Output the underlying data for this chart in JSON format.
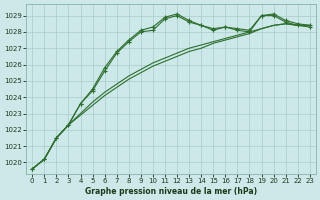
{
  "title": "Graphe pression niveau de la mer (hPa)",
  "bg_color": "#cce8e8",
  "grid_color": "#aacccc",
  "line_color": "#2d6e2d",
  "xlim": [
    -0.5,
    23.5
  ],
  "ylim": [
    1019.3,
    1029.7
  ],
  "yticks": [
    1020,
    1021,
    1022,
    1023,
    1024,
    1025,
    1026,
    1027,
    1028,
    1029
  ],
  "xticks": [
    0,
    1,
    2,
    3,
    4,
    5,
    6,
    7,
    8,
    9,
    10,
    11,
    12,
    13,
    14,
    15,
    16,
    17,
    18,
    19,
    20,
    21,
    22,
    23
  ],
  "series_marked_1": [
    1019.6,
    1020.2,
    1021.5,
    1022.3,
    1023.6,
    1024.4,
    1025.6,
    1026.7,
    1027.4,
    1028.0,
    1028.1,
    1028.8,
    1029.0,
    1028.6,
    1028.4,
    1028.1,
    1028.3,
    1028.2,
    1028.1,
    1029.0,
    1029.1,
    1028.7,
    1028.5,
    1028.4
  ],
  "series_marked_2": [
    1019.6,
    1020.2,
    1021.5,
    1022.3,
    1023.6,
    1024.5,
    1025.8,
    1026.8,
    1027.5,
    1028.1,
    1028.3,
    1028.9,
    1029.1,
    1028.7,
    1028.4,
    1028.2,
    1028.3,
    1028.1,
    1028.0,
    1029.0,
    1029.0,
    1028.6,
    1028.4,
    1028.3
  ],
  "series_smooth_1": [
    1019.6,
    1020.2,
    1021.5,
    1022.3,
    1023.0,
    1023.7,
    1024.3,
    1024.8,
    1025.3,
    1025.7,
    1026.1,
    1026.4,
    1026.7,
    1027.0,
    1027.2,
    1027.4,
    1027.6,
    1027.8,
    1028.0,
    1028.2,
    1028.4,
    1028.5,
    1028.4,
    1028.4
  ],
  "series_smooth_2": [
    1019.6,
    1020.2,
    1021.5,
    1022.3,
    1022.9,
    1023.5,
    1024.1,
    1024.6,
    1025.1,
    1025.5,
    1025.9,
    1026.2,
    1026.5,
    1026.8,
    1027.0,
    1027.3,
    1027.5,
    1027.7,
    1027.9,
    1028.2,
    1028.4,
    1028.5,
    1028.4,
    1028.4
  ]
}
